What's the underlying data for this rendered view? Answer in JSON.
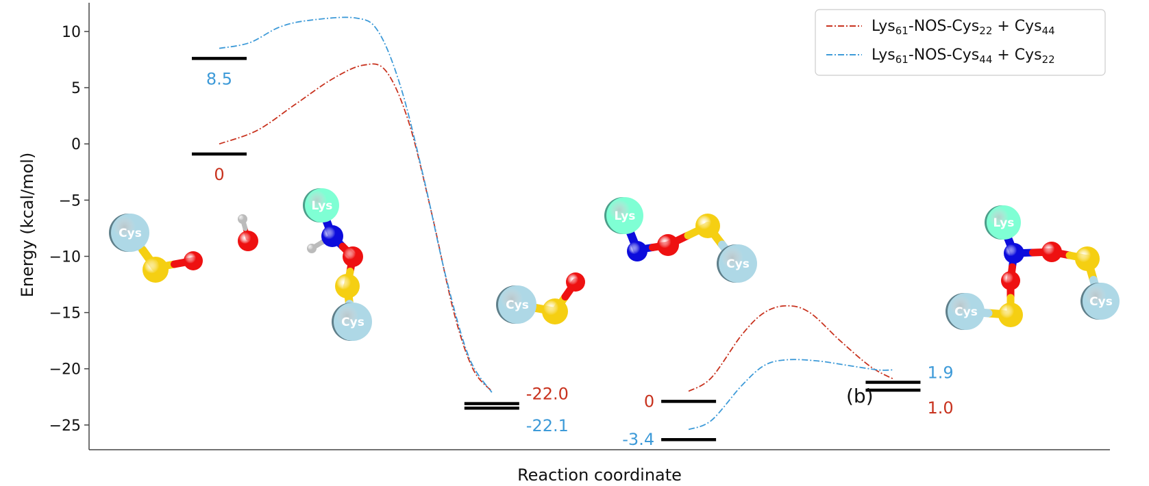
{
  "chart_data": {
    "type": "line",
    "xlabel": "Reaction coordinate",
    "ylabel": "Energy (kcal/mol)",
    "ylim": [
      -27.2,
      12.8
    ],
    "yticks": [
      {
        "value": 10,
        "label": "10"
      },
      {
        "value": 5,
        "label": "5"
      },
      {
        "value": 0,
        "label": "0"
      },
      {
        "value": -5,
        "label": "−5"
      },
      {
        "value": -10,
        "label": "−10"
      },
      {
        "value": -15,
        "label": "−15"
      },
      {
        "value": -20,
        "label": "−20"
      },
      {
        "value": -25,
        "label": "−25"
      }
    ],
    "grid": false,
    "legend": "top-right",
    "legend_entries": [
      {
        "color": "#c8321e",
        "parts": [
          {
            "text": "Lys"
          },
          {
            "text": "61",
            "sub": true
          },
          {
            "text": "-NOS-Cys"
          },
          {
            "text": "22",
            "sub": true
          },
          {
            "text": " + Cys"
          },
          {
            "text": "44",
            "sub": true
          }
        ]
      },
      {
        "color": "#3d9ad8",
        "parts": [
          {
            "text": "Lys"
          },
          {
            "text": "61",
            "sub": true
          },
          {
            "text": "-NOS-Cys"
          },
          {
            "text": "44",
            "sub": true
          },
          {
            "text": " + Cys"
          },
          {
            "text": "22",
            "sub": true
          }
        ]
      }
    ],
    "series": [
      {
        "color": "#c8321e",
        "segments": [
          [
            [
              0.0,
              0.0
            ],
            [
              0.05,
              1.2
            ],
            [
              0.1,
              3.5
            ],
            [
              0.15,
              5.8
            ],
            [
              0.19,
              7.0
            ],
            [
              0.22,
              6.5
            ],
            [
              0.25,
              2.0
            ],
            [
              0.28,
              -6.0
            ],
            [
              0.31,
              -15.0
            ],
            [
              0.335,
              -20.0
            ],
            [
              0.36,
              -22.0
            ]
          ],
          [
            [
              0.62,
              -22.0
            ],
            [
              0.65,
              -20.8
            ],
            [
              0.69,
              -17.0
            ],
            [
              0.72,
              -15.0
            ],
            [
              0.75,
              -14.4
            ],
            [
              0.78,
              -15.0
            ],
            [
              0.82,
              -17.5
            ],
            [
              0.86,
              -19.8
            ],
            [
              0.89,
              -20.9
            ]
          ]
        ]
      },
      {
        "color": "#3d9ad8",
        "segments": [
          [
            [
              0.0,
              8.5
            ],
            [
              0.04,
              9.0
            ],
            [
              0.08,
              10.4
            ],
            [
              0.12,
              11.0
            ],
            [
              0.18,
              11.2
            ],
            [
              0.21,
              10.0
            ],
            [
              0.24,
              5.0
            ],
            [
              0.27,
              -3.0
            ],
            [
              0.3,
              -12.0
            ],
            [
              0.33,
              -19.0
            ],
            [
              0.36,
              -22.1
            ]
          ],
          [
            [
              0.62,
              -25.4
            ],
            [
              0.65,
              -24.6
            ],
            [
              0.69,
              -21.5
            ],
            [
              0.72,
              -19.7
            ],
            [
              0.75,
              -19.2
            ],
            [
              0.79,
              -19.3
            ],
            [
              0.83,
              -19.7
            ],
            [
              0.87,
              -20.1
            ],
            [
              0.89,
              -20.1
            ]
          ]
        ]
      }
    ],
    "levels": [
      {
        "x": 0.0,
        "y": -0.9,
        "label": "0",
        "color": "#c8321e",
        "side": "below"
      },
      {
        "x": 0.0,
        "y": 7.6,
        "label": "8.5",
        "color": "#3d9ad8",
        "side": "below"
      },
      {
        "x": 0.36,
        "y": -23.1,
        "label": "-22.0",
        "color": "#c8321e",
        "side": "right-up"
      },
      {
        "x": 0.36,
        "y": -23.5,
        "label": "-22.1",
        "color": "#3d9ad8",
        "side": "right-down"
      },
      {
        "x": 0.62,
        "y": -22.9,
        "label": "0",
        "color": "#c8321e",
        "side": "left"
      },
      {
        "x": 0.62,
        "y": -26.3,
        "label": "-3.4",
        "color": "#3d9ad8",
        "side": "left"
      },
      {
        "x": 0.89,
        "y": -21.2,
        "label": "1.9",
        "color": "#3d9ad8",
        "side": "right-up"
      },
      {
        "x": 0.89,
        "y": -21.9,
        "label": "1.0",
        "color": "#c8321e",
        "side": "right-down"
      }
    ],
    "panel_label": "(b)",
    "molecule_labels": {
      "cys": "Cys",
      "lys": "Lys"
    },
    "colors": {
      "sulfur": "#f5cf12",
      "oxygen": "#ee1111",
      "nitrogen": "#0c0cdc",
      "hydrogen": "#bbbbbb",
      "cys_group": "#aed8e6",
      "lys_group": "#7fffd4"
    }
  }
}
